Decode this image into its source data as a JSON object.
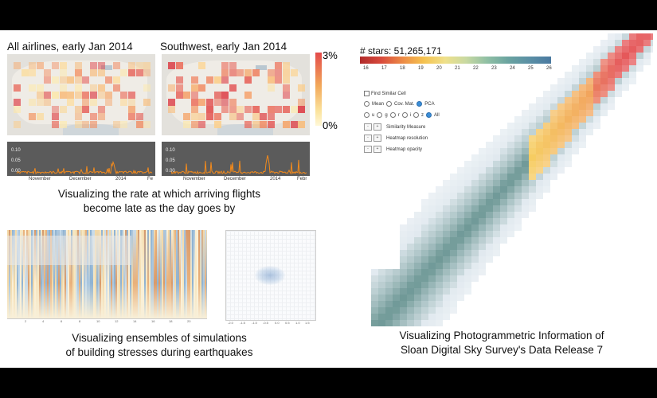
{
  "panels": {
    "airlines": {
      "map1_title": "All airlines, early Jan 2014",
      "map2_title": "Southwest, early Jan 2014",
      "legend_max": "3%",
      "legend_min": "0%",
      "y_ticks": [
        "0.10",
        "0.05",
        "0.00"
      ],
      "x_ticks_1": [
        "November",
        "December",
        "2014",
        "Fe"
      ],
      "x_ticks_2": [
        "November",
        "December",
        "2014",
        "Febr"
      ],
      "caption_line1": "Visualizing the rate at which arriving flights",
      "caption_line2": "become late as the day goes by"
    },
    "quake": {
      "caption_line1": "Visualizing ensembles of simulations",
      "caption_line2": "of building stresses during earthquakes"
    },
    "sdss": {
      "stars_label": "# stars: 51,265,171",
      "colorbar_ticks": [
        "16",
        "17",
        "18",
        "19",
        "20",
        "21",
        "22",
        "23",
        "24",
        "25",
        "26"
      ],
      "find_similar": "Find Similar Cell",
      "stats_options": [
        "Mean",
        "Cov. Mat.",
        "PCA"
      ],
      "band_options": [
        "u",
        "g",
        "r",
        "i",
        "z",
        "All"
      ],
      "similarity_measure": "Similarity Measure",
      "heatmap_resolution": "Heatmap resolution",
      "heatmap_opacity": "Heatmap opacity",
      "caption_line1": "Visualizing Photogrammetric Information of",
      "caption_line2": "Sloan Digital Sky Survey's Data Release 7"
    }
  },
  "colors": {
    "heat_high": "#e34a4a",
    "heat_mid": "#f2a85a",
    "heat_low": "#fbe39d",
    "sdss_teal": "#5a8a8a",
    "sdss_blue": "#a9c4d3",
    "sparkline": "#f28a1c"
  }
}
